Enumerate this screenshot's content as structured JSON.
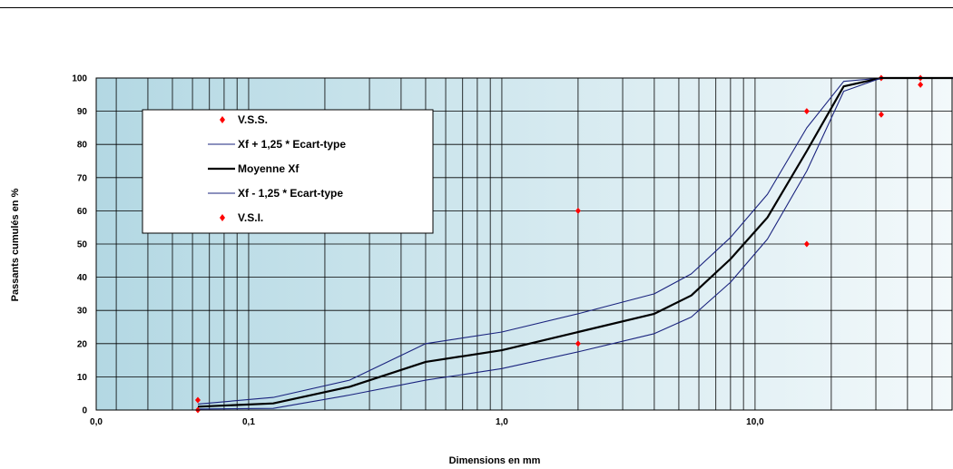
{
  "chart_data": {
    "type": "line",
    "xscale": "log",
    "xlim": [
      0.025,
      60
    ],
    "ylim": [
      0,
      100
    ],
    "xticks": [
      {
        "value": 0.025,
        "label": "0,0"
      },
      {
        "value": 0.1,
        "label": "0,1"
      },
      {
        "value": 1,
        "label": "1,0"
      },
      {
        "value": 10,
        "label": "10,0"
      }
    ],
    "yticks": [
      0,
      10,
      20,
      30,
      40,
      50,
      60,
      70,
      80,
      90,
      100
    ],
    "xlabel": "Dimensions en mm",
    "ylabel": "Passants cumulés en %",
    "grid": true,
    "legend": "top-left",
    "series": [
      {
        "name": "V.S.S.",
        "kind": "scatter",
        "color": "#ff0000",
        "points": [
          [
            0.063,
            3
          ],
          [
            2,
            60
          ],
          [
            16,
            90
          ],
          [
            31.5,
            100
          ],
          [
            45,
            100
          ]
        ]
      },
      {
        "name": "Xf + 1,25 * Ecart-type",
        "kind": "line",
        "color": "#1a237e",
        "points": [
          [
            0.063,
            1.8
          ],
          [
            0.125,
            3.8
          ],
          [
            0.25,
            9
          ],
          [
            0.5,
            20
          ],
          [
            1,
            23.5
          ],
          [
            2,
            29
          ],
          [
            4,
            35
          ],
          [
            5.6,
            41
          ],
          [
            8,
            52
          ],
          [
            11.2,
            65
          ],
          [
            16,
            85
          ],
          [
            22.4,
            99
          ],
          [
            31.5,
            100
          ],
          [
            63,
            100
          ]
        ]
      },
      {
        "name": "Moyenne Xf",
        "kind": "line",
        "color": "#000000",
        "points": [
          [
            0.063,
            1
          ],
          [
            0.125,
            2
          ],
          [
            0.25,
            7
          ],
          [
            0.5,
            14.5
          ],
          [
            1,
            18
          ],
          [
            2,
            23.5
          ],
          [
            4,
            29
          ],
          [
            5.6,
            34.5
          ],
          [
            8,
            45.5
          ],
          [
            11.2,
            58
          ],
          [
            16,
            78
          ],
          [
            22.4,
            97.5
          ],
          [
            31.5,
            100
          ],
          [
            63,
            100
          ]
        ]
      },
      {
        "name": "Xf - 1,25 * Ecart-type",
        "kind": "line",
        "color": "#1a237e",
        "points": [
          [
            0.063,
            0.3
          ],
          [
            0.125,
            0.5
          ],
          [
            0.25,
            4.5
          ],
          [
            0.5,
            9
          ],
          [
            1,
            12.5
          ],
          [
            2,
            17.5
          ],
          [
            4,
            23
          ],
          [
            5.6,
            28
          ],
          [
            8,
            38.5
          ],
          [
            11.2,
            51.5
          ],
          [
            16,
            72
          ],
          [
            22.4,
            96
          ],
          [
            31.5,
            100
          ],
          [
            63,
            100
          ]
        ]
      },
      {
        "name": "V.S.I.",
        "kind": "scatter",
        "color": "#ff0000",
        "points": [
          [
            0.063,
            0
          ],
          [
            2,
            20
          ],
          [
            16,
            50
          ],
          [
            31.5,
            89
          ],
          [
            45,
            98
          ]
        ]
      }
    ]
  }
}
